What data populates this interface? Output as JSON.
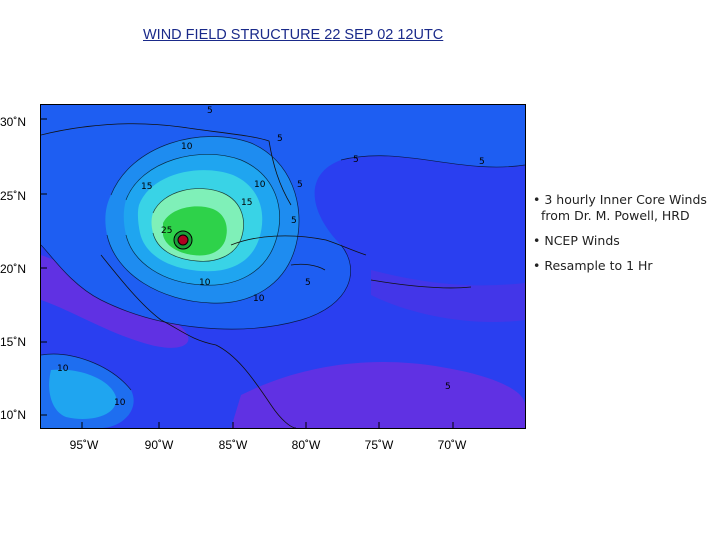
{
  "title": "WIND FIELD STRUCTURE 22 SEP 02 12UTC",
  "map": {
    "lat_labels": [
      "30˚N",
      "25˚N",
      "20˚N",
      "15˚N",
      "10˚N"
    ],
    "lon_labels": [
      "95˚W",
      "90˚W",
      "85˚W",
      "80˚W",
      "75˚W",
      "70˚W"
    ],
    "contour_labels": [
      "5",
      "10",
      "15",
      "25",
      "5",
      "10",
      "15",
      "5",
      "5",
      "10",
      "5",
      "10",
      "5",
      "5",
      "10",
      "5",
      "10"
    ],
    "colors": {
      "ocean_low": "#2a3ff0",
      "ocean_mid": "#1e6ef0",
      "band_10": "#1fa5f0",
      "band_15": "#39d3e6",
      "band_20": "#7ff0b8",
      "core": "#2ed24a",
      "calm": "#6a2fe0"
    }
  },
  "bullets": [
    "• 3 hourly Inner Core Winds from Dr. M. Powell, HRD",
    "• NCEP Winds",
    "• Resample to 1 Hr"
  ]
}
